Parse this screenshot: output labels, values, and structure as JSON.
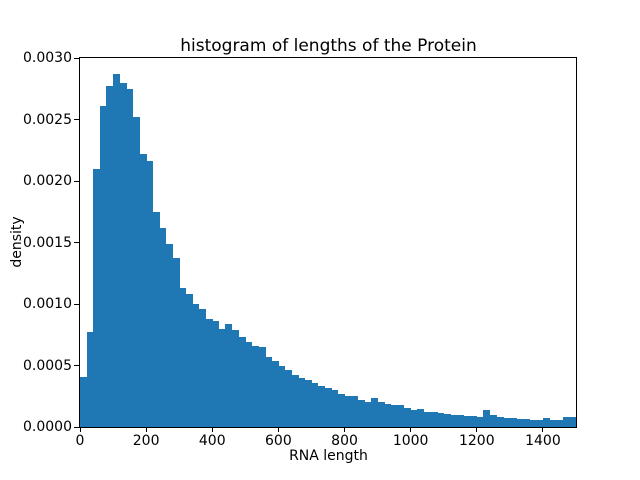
{
  "chart_data": {
    "type": "bar",
    "subtype": "histogram",
    "title": "histogram of lengths of the Protein",
    "xlabel": "RNA length",
    "ylabel": "density",
    "bar_color": "#1f77b4",
    "background_color": "#ffffff",
    "grid": false,
    "legend": false,
    "xlim": [
      0,
      1500
    ],
    "ylim": [
      0,
      0.003
    ],
    "bin_start": 0,
    "bin_width": 20,
    "x_ticks": [
      0,
      200,
      400,
      600,
      800,
      1000,
      1200,
      1400
    ],
    "x_tick_labels": [
      "0",
      "200",
      "400",
      "600",
      "800",
      "1000",
      "1200",
      "1400"
    ],
    "y_ticks": [
      0,
      0.0005,
      0.001,
      0.0015,
      0.002,
      0.0025,
      0.003
    ],
    "y_tick_labels": [
      "0.0000",
      "0.0005",
      "0.0010",
      "0.0015",
      "0.0020",
      "0.0025",
      "0.0030"
    ],
    "values": [
      0.00041,
      0.00077,
      0.0021,
      0.00261,
      0.00277,
      0.00287,
      0.0028,
      0.00275,
      0.00252,
      0.00222,
      0.00216,
      0.00175,
      0.00162,
      0.00149,
      0.00137,
      0.00113,
      0.00108,
      0.001,
      0.00096,
      0.00088,
      0.00086,
      0.0008,
      0.00084,
      0.00079,
      0.00073,
      0.00069,
      0.00066,
      0.00065,
      0.00057,
      0.00054,
      0.0005,
      0.00046,
      0.00042,
      0.0004,
      0.00038,
      0.00036,
      0.00033,
      0.00032,
      0.0003,
      0.00027,
      0.00025,
      0.00025,
      0.00022,
      0.000205,
      0.000235,
      0.0002,
      0.00019,
      0.000175,
      0.000178,
      0.000152,
      0.00014,
      0.000143,
      0.000125,
      0.000125,
      0.00011,
      0.000105,
      0.0001,
      9.5e-05,
      9e-05,
      8.8e-05,
      8.5e-05,
      0.00014,
      9.5e-05,
      8e-05,
      7.5e-05,
      7e-05,
      6.5e-05,
      6.5e-05,
      6e-05,
      6e-05,
      7e-05,
      5.5e-05,
      6e-05,
      8e-05,
      8.5e-05
    ]
  }
}
